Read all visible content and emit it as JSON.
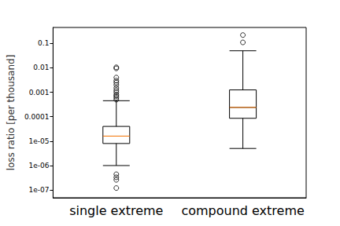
{
  "chart_data": {
    "type": "boxplot",
    "y_label": "loss ratio [per thousand]",
    "categories": [
      "single extreme",
      "compound extreme"
    ],
    "boxes": [
      [
        1e-06,
        8e-06,
        1.6e-05,
        4e-05,
        0.00045
      ],
      [
        5e-06,
        8.6e-05,
        0.00024,
        0.00125,
        0.05
      ]
    ],
    "outliers": [
      [
        1.2e-07,
        2.6e-07,
        3.3e-07,
        4.4e-07,
        0.0005,
        0.0006,
        0.0007,
        0.0008,
        0.001,
        0.0012,
        0.0015,
        0.002,
        0.0025,
        0.003,
        0.004,
        0.0095,
        0.0105
      ],
      [
        0.11,
        0.22
      ]
    ],
    "color": "#000000",
    "marker": "circle",
    "log": "y",
    "ylim": [
      4.8e-08,
      0.45
    ],
    "yticks": [
      {
        "value": 1e-07,
        "label": "1e-07"
      },
      {
        "value": 1e-06,
        "label": "1e-06"
      },
      {
        "value": 1e-05,
        "label": "1e-05"
      },
      0.0001,
      0.001,
      0.01,
      0.1
    ],
    "grid": false
  }
}
